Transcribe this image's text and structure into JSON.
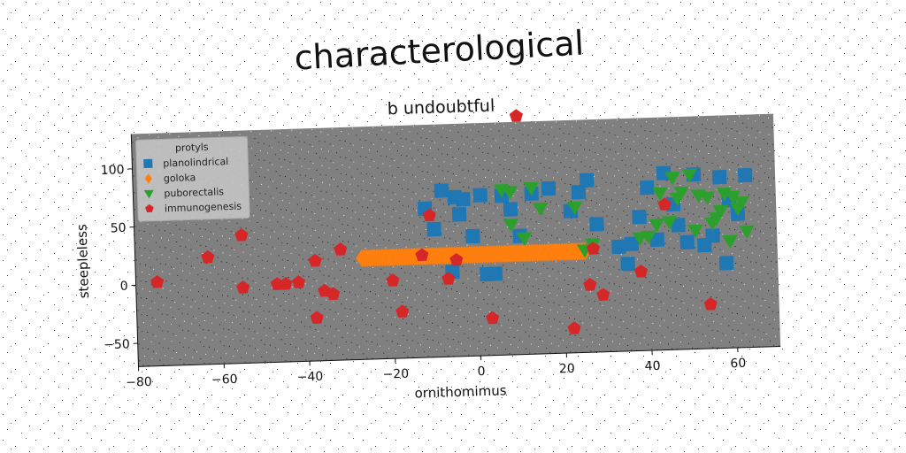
{
  "chart_data": {
    "type": "scatter",
    "title": "characterological",
    "subtitle": "b undoubtful",
    "xlabel": "ornithomimus",
    "ylabel": "steepleless",
    "xlim": [
      -80,
      70
    ],
    "ylim": [
      -70,
      130
    ],
    "xticks": [
      -80,
      -60,
      -40,
      -20,
      0,
      20,
      40,
      60
    ],
    "yticks": [
      -50,
      0,
      50,
      100
    ],
    "grid": false,
    "legend": {
      "title": "protyls",
      "placement": "top-left"
    },
    "series": [
      {
        "name": "planolindrical",
        "marker": "square",
        "color": "#1f77b4",
        "points": [
          [
            -12,
            58
          ],
          [
            -10,
            40
          ],
          [
            -8,
            73
          ],
          [
            -5,
            67
          ],
          [
            -4,
            52
          ],
          [
            -3,
            65
          ],
          [
            -1,
            33
          ],
          [
            1,
            68
          ],
          [
            2,
            0
          ],
          [
            4,
            0
          ],
          [
            6,
            67
          ],
          [
            8,
            55
          ],
          [
            10,
            32
          ],
          [
            13,
            68
          ],
          [
            17,
            72
          ],
          [
            22,
            52
          ],
          [
            24,
            68
          ],
          [
            26,
            78
          ],
          [
            28,
            40
          ],
          [
            33,
            20
          ],
          [
            35,
            5
          ],
          [
            36,
            22
          ],
          [
            38,
            45
          ],
          [
            40,
            70
          ],
          [
            42,
            25
          ],
          [
            44,
            82
          ],
          [
            46,
            55
          ],
          [
            47,
            37
          ],
          [
            49,
            22
          ],
          [
            51,
            80
          ],
          [
            53,
            19
          ],
          [
            55,
            27
          ],
          [
            57,
            77
          ],
          [
            58,
            3
          ],
          [
            59,
            57
          ],
          [
            61,
            45
          ],
          [
            63,
            78
          ],
          [
            -6,
            3
          ]
        ]
      },
      {
        "name": "goloka",
        "marker": "diamond",
        "color": "#ff7f0e",
        "x_range": [
          -27,
          25
        ],
        "y_value": 17,
        "count": 90
      },
      {
        "name": "puborectalis",
        "marker": "triangle-down",
        "color": "#2ca02c",
        "points": [
          [
            6,
            72
          ],
          [
            8,
            70
          ],
          [
            8,
            42
          ],
          [
            11,
            30
          ],
          [
            13,
            73
          ],
          [
            15,
            55
          ],
          [
            23,
            55
          ],
          [
            25,
            18
          ],
          [
            27,
            23
          ],
          [
            38,
            27
          ],
          [
            40,
            28
          ],
          [
            42,
            38
          ],
          [
            43,
            65
          ],
          [
            45,
            40
          ],
          [
            46,
            78
          ],
          [
            47,
            60
          ],
          [
            48,
            65
          ],
          [
            50,
            80
          ],
          [
            51,
            32
          ],
          [
            52,
            62
          ],
          [
            54,
            60
          ],
          [
            55,
            38
          ],
          [
            56,
            42
          ],
          [
            57,
            48
          ],
          [
            58,
            63
          ],
          [
            59,
            22
          ],
          [
            60,
            60
          ],
          [
            61,
            50
          ],
          [
            62,
            55
          ],
          [
            63,
            30
          ]
        ]
      },
      {
        "name": "immunogenesis",
        "marker": "pentagon",
        "color": "#d62728",
        "points": [
          [
            -75,
            2
          ],
          [
            -63,
            22
          ],
          [
            -55,
            40
          ],
          [
            -55,
            -5
          ],
          [
            -47,
            -3
          ],
          [
            -45,
            -3
          ],
          [
            -42,
            -2
          ],
          [
            -38,
            -33
          ],
          [
            -38,
            16
          ],
          [
            -36,
            -10
          ],
          [
            -34,
            -13
          ],
          [
            -32,
            25
          ],
          [
            -20,
            -3
          ],
          [
            -18,
            -30
          ],
          [
            -13,
            18
          ],
          [
            -11,
            52
          ],
          [
            -7,
            -3
          ],
          [
            -5,
            13
          ],
          [
            3,
            -38
          ],
          [
            10,
            135
          ],
          [
            22,
            -49
          ],
          [
            26,
            -12
          ],
          [
            27,
            19
          ],
          [
            29,
            -21
          ],
          [
            38,
            -2
          ],
          [
            44,
            55
          ],
          [
            54,
            -32
          ]
        ]
      }
    ]
  }
}
